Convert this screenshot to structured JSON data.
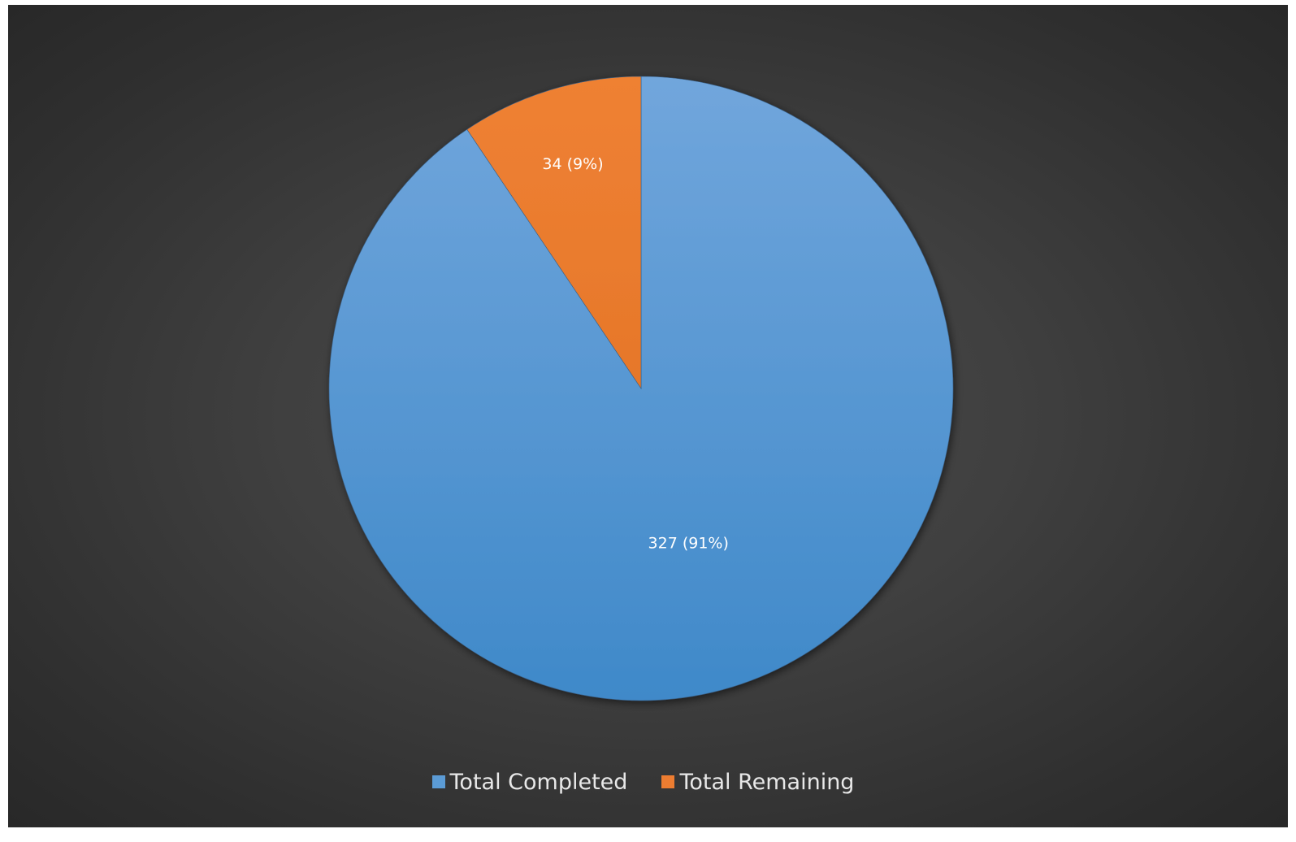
{
  "chart_data": {
    "type": "pie",
    "title": "",
    "series": [
      {
        "values": [
          327,
          34
        ],
        "categories": [
          "Total Completed",
          "Total Remaining"
        ]
      }
    ],
    "categories": [
      "Total Completed",
      "Total Remaining"
    ],
    "values": [
      327,
      34
    ],
    "data_labels": [
      "327 (91%)",
      "34 (9%)"
    ],
    "colors": [
      "#5b9bd5",
      "#ed7d31"
    ],
    "legend_placement": "bottom",
    "start_angle": "12 o'clock"
  },
  "legend": {
    "items": [
      {
        "label": "Total Completed",
        "color": "#5b9bd5"
      },
      {
        "label": "Total Remaining",
        "color": "#ed7d31"
      }
    ]
  },
  "colors": {
    "background": "#3c3c3c",
    "label_text": "#ffffff"
  }
}
